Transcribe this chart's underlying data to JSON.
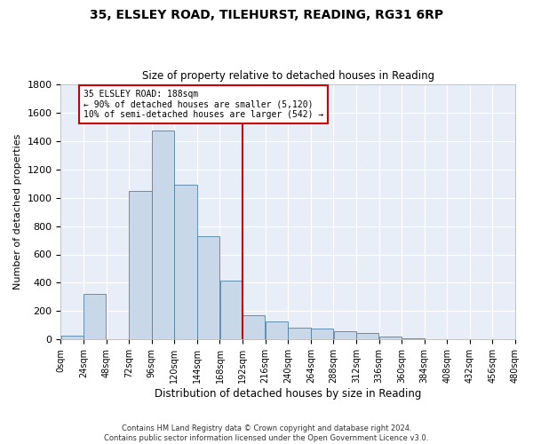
{
  "title": "35, ELSLEY ROAD, TILEHURST, READING, RG31 6RP",
  "subtitle": "Size of property relative to detached houses in Reading",
  "xlabel": "Distribution of detached houses by size in Reading",
  "ylabel": "Number of detached properties",
  "bin_edges": [
    0,
    24,
    48,
    72,
    96,
    120,
    144,
    168,
    192,
    216,
    240,
    264,
    288,
    312,
    336,
    360,
    384,
    408,
    432,
    456,
    480
  ],
  "bar_heights": [
    28,
    320,
    0,
    1050,
    1470,
    1090,
    730,
    415,
    170,
    130,
    85,
    75,
    60,
    45,
    20,
    10,
    5,
    3,
    2,
    1
  ],
  "bar_color": "#c8d8e8",
  "bar_edge_color": "#5080a0",
  "bg_color": "#e8eef8",
  "grid_color": "#ffffff",
  "vline_x": 192,
  "vline_color": "#cc0000",
  "annotation_title": "35 ELSLEY ROAD: 188sqm",
  "annotation_line1": "← 90% of detached houses are smaller (5,120)",
  "annotation_line2": "10% of semi-detached houses are larger (542) →",
  "annotation_box_color": "#cc0000",
  "footnote1": "Contains HM Land Registry data © Crown copyright and database right 2024.",
  "footnote2": "Contains public sector information licensed under the Open Government Licence v3.0.",
  "ylim": [
    0,
    1800
  ],
  "yticks": [
    0,
    200,
    400,
    600,
    800,
    1000,
    1200,
    1400,
    1600,
    1800
  ]
}
